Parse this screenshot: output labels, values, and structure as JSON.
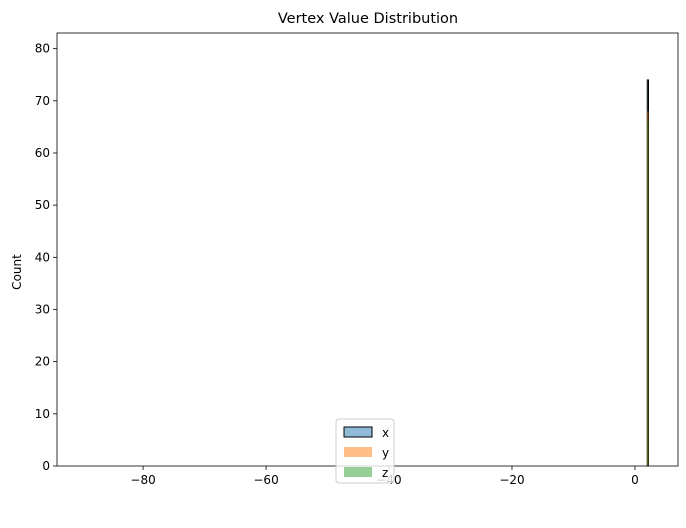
{
  "chart_data": {
    "type": "histogram",
    "title": "Vertex Value Distribution",
    "xlabel": "",
    "ylabel": "Count",
    "xlim": [
      -94,
      7
    ],
    "ylim": [
      0,
      83
    ],
    "xticks": [
      -80,
      -60,
      -40,
      -20,
      0
    ],
    "yticks": [
      0,
      10,
      20,
      30,
      40,
      50,
      60,
      70,
      80
    ],
    "grid": false,
    "legend": {
      "placement": "lower-center"
    },
    "series": [
      {
        "name": "x",
        "color": "#1f77b4",
        "alpha": 0.5,
        "edgecolor": "#000000",
        "bins": [
          {
            "x0": 2.0,
            "x1": 2.2,
            "count": 74
          }
        ]
      },
      {
        "name": "y",
        "color": "#ff7f0e",
        "alpha": 0.5,
        "bins": [
          {
            "x0": 2.0,
            "x1": 2.2,
            "count": 68
          }
        ]
      },
      {
        "name": "z",
        "color": "#2ca02c",
        "alpha": 0.5,
        "bins": [
          {
            "x0": 2.0,
            "x1": 2.2,
            "count": 66
          }
        ]
      }
    ]
  }
}
